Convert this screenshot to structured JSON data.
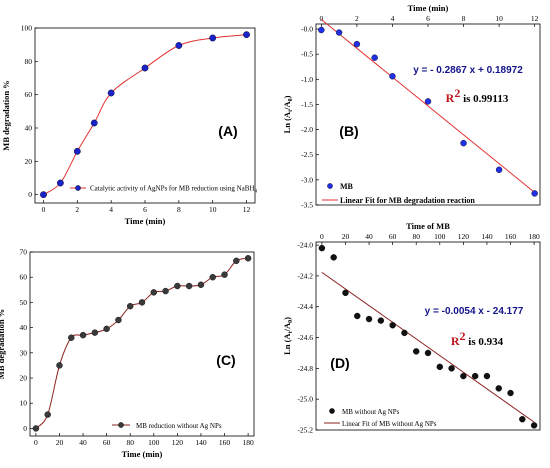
{
  "chart_data": [
    {
      "id": "A",
      "type": "line",
      "panel_label": "(A)",
      "xlabel": "Time (min)",
      "ylabel": "MB degradation %",
      "xlim": [
        -0.5,
        12.5
      ],
      "ylim": [
        -5,
        100
      ],
      "xticks": [
        0,
        2,
        4,
        6,
        8,
        10,
        12
      ],
      "yticks": [
        0,
        20,
        40,
        60,
        80,
        100
      ],
      "series": [
        {
          "name": "Catalytic activity of AgNPs for MB reduction using NaBH4",
          "x": [
            0,
            1,
            2,
            3,
            4,
            6,
            8,
            10,
            12
          ],
          "y": [
            0,
            7,
            26,
            43,
            61,
            76,
            89.5,
            94,
            96
          ],
          "marker_color": "#1a22c8",
          "line_color": "#e23232"
        }
      ],
      "legend_label": "Catalytic activity of AgNPs for MB reduction using NaBH",
      "legend_subscript": "4",
      "legend_position": "bottom-center"
    },
    {
      "id": "B",
      "type": "scatter",
      "panel_label": "(B)",
      "xlabel": "Time (min)",
      "ylabel": "Ln (At/A0)",
      "ylabel_parts": [
        "Ln (A",
        "t",
        "/A",
        "0",
        ")"
      ],
      "xaxis_position": "top",
      "xlim": [
        -0.3,
        12.3
      ],
      "ylim": [
        -3.5,
        0.1
      ],
      "xticks": [
        0,
        2,
        4,
        6,
        8,
        10,
        12
      ],
      "yticks": [
        0.0,
        -0.5,
        -1.0,
        -1.5,
        -2.0,
        -2.5,
        -3.0,
        -3.5
      ],
      "ytick_labels": [
        "-0.0",
        "-0.5",
        "-1.0",
        "-1.5",
        "-2.0",
        "-2.5",
        "-3.0",
        "-3.5"
      ],
      "series": [
        {
          "name": "MB",
          "x": [
            0,
            1,
            2,
            3,
            4,
            6,
            8,
            10,
            12
          ],
          "y": [
            -0.02,
            -0.07,
            -0.3,
            -0.57,
            -0.94,
            -1.44,
            -2.27,
            -2.8,
            -3.27
          ],
          "marker_color": "#2030e6"
        }
      ],
      "fit": {
        "name": "Linear Fit for MB degradation reaction",
        "slope": -0.2867,
        "intercept": 0.18972,
        "x_range": [
          0,
          12
        ],
        "color": "#e23232"
      },
      "equation": "y = - 0.2867 x + 0.18972",
      "r2_label": "R",
      "r2_sup": "2",
      "r2_text": " is 0.99113",
      "legend_position": "bottom-left"
    },
    {
      "id": "C",
      "type": "line",
      "panel_label": "(C)",
      "xlabel": "Time (min)",
      "ylabel": "MB degradation %",
      "xlim": [
        -5,
        185
      ],
      "ylim": [
        -3,
        70
      ],
      "xticks": [
        0,
        20,
        40,
        60,
        80,
        100,
        120,
        140,
        160,
        180
      ],
      "yticks": [
        0,
        10,
        20,
        30,
        40,
        50,
        60,
        70
      ],
      "series": [
        {
          "name": "MB reduction without Ag NPs",
          "x": [
            0,
            10,
            20,
            30,
            40,
            50,
            60,
            70,
            80,
            90,
            100,
            110,
            120,
            130,
            140,
            150,
            160,
            170,
            180
          ],
          "y": [
            0,
            5.5,
            25,
            36,
            37,
            38,
            39.5,
            43,
            48.5,
            50,
            54,
            54.5,
            56.5,
            56.5,
            57,
            60,
            61,
            66.5,
            67.5
          ],
          "marker_color": "#3a3a3a",
          "line_color": "#8b2020"
        }
      ],
      "legend_position": "bottom-right"
    },
    {
      "id": "D",
      "type": "scatter",
      "panel_label": "(D)",
      "xlabel": "Time of MB",
      "ylabel": "Ln (At/A0)",
      "ylabel_parts": [
        "Ln (A",
        "t",
        "/A",
        "0",
        ")"
      ],
      "xaxis_position": "top",
      "xlim": [
        -5,
        185
      ],
      "ylim": [
        -25.2,
        -23.98
      ],
      "xticks": [
        0,
        20,
        40,
        60,
        80,
        100,
        120,
        140,
        160,
        180
      ],
      "yticks": [
        -24.0,
        -24.2,
        -24.4,
        -24.6,
        -24.8,
        -25.0,
        -25.2
      ],
      "series": [
        {
          "name": "MB without Ag NPs",
          "x": [
            0,
            10,
            20,
            30,
            40,
            50,
            60,
            70,
            80,
            90,
            100,
            110,
            120,
            130,
            140,
            150,
            160,
            170,
            180
          ],
          "y": [
            -24.02,
            -24.08,
            -24.31,
            -24.46,
            -24.48,
            -24.49,
            -24.52,
            -24.57,
            -24.69,
            -24.7,
            -24.79,
            -24.8,
            -24.85,
            -24.85,
            -24.85,
            -24.93,
            -24.96,
            -25.13,
            -25.17
          ],
          "marker_color": "#111111"
        }
      ],
      "fit": {
        "name": "Linear Fit of MB without Ag NPs",
        "slope": -0.0054,
        "intercept": -24.177,
        "x_range": [
          0,
          180
        ],
        "color": "#8b2020"
      },
      "equation": "y = -0.0054 x - 24.177",
      "r2_label": "R",
      "r2_sup": "2",
      "r2_text": " is 0.934",
      "legend_position": "bottom-left"
    }
  ]
}
